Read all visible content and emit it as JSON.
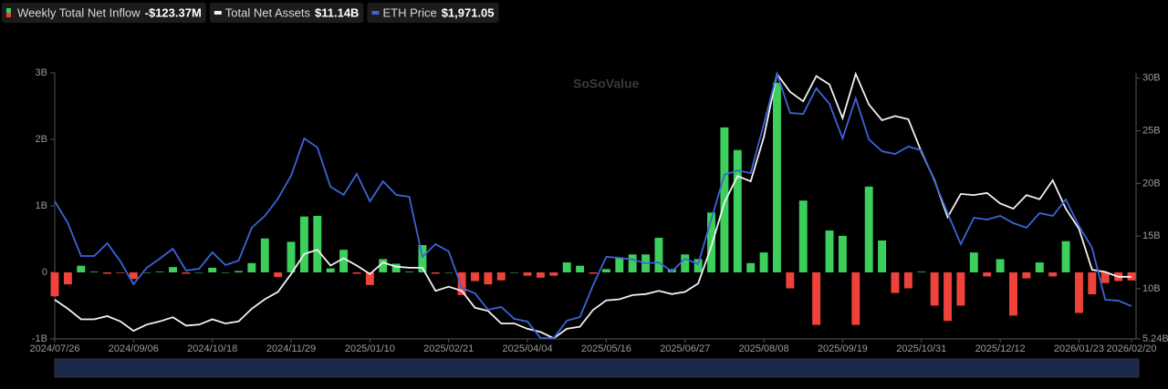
{
  "chart_data": {
    "type": "bar-line",
    "watermark": "SoSoValue",
    "categories": [
      "2024/07/26",
      null,
      null,
      null,
      null,
      null,
      "2024/09/06",
      null,
      null,
      null,
      null,
      null,
      "2024/10/18",
      null,
      null,
      null,
      null,
      null,
      "2024/11/29",
      null,
      null,
      null,
      null,
      null,
      "2025/01/10",
      null,
      null,
      null,
      null,
      null,
      "2025/02/21",
      null,
      null,
      null,
      null,
      null,
      "2025/04/04",
      null,
      null,
      null,
      null,
      null,
      "2025/05/16",
      null,
      null,
      null,
      null,
      null,
      "2025/06/27",
      null,
      null,
      null,
      null,
      null,
      "2025/08/08",
      null,
      null,
      null,
      null,
      null,
      "2025/09/19",
      null,
      null,
      null,
      null,
      null,
      "2025/10/31",
      null,
      null,
      null,
      null,
      null,
      "2025/12/12",
      null,
      null,
      null,
      null,
      null,
      "2026/01/23",
      null,
      null,
      null,
      "2026/02/20"
    ],
    "ylim": [
      -1,
      3
    ],
    "yticks": [
      {
        "value": -1,
        "label": "-1B"
      },
      0,
      {
        "value": 1,
        "label": "1B"
      },
      {
        "value": 2,
        "label": "2B"
      },
      {
        "value": 3,
        "label": "3B"
      }
    ],
    "y2lim": [
      5.24,
      30.5
    ],
    "y2ticks": [
      {
        "value": 5.24,
        "label": "5.24B"
      },
      {
        "value": 10,
        "label": "10B"
      },
      {
        "value": 15,
        "label": "15B"
      },
      {
        "value": 20,
        "label": "20B"
      },
      {
        "value": 25,
        "label": "25B"
      },
      {
        "value": 30,
        "label": "30B"
      }
    ],
    "y3lim": [
      1570,
      4810
    ],
    "series": [
      {
        "name": "Weekly Total Net Inflow",
        "latest": "-$123.37M",
        "type": "bar",
        "color": "#3ccf5c",
        "negative_color": "#f0423a",
        "legend_color": "#3ccf5c",
        "values": [
          -0.36,
          -0.18,
          0.1,
          0.01,
          -0.02,
          -0.01,
          -0.1,
          0,
          0.01,
          0.08,
          -0.02,
          0,
          0.07,
          0,
          0.02,
          0.14,
          0.51,
          -0.07,
          0.46,
          0.84,
          0.85,
          0.06,
          0.34,
          -0.02,
          -0.19,
          0.2,
          0.13,
          0.01,
          0.41,
          -0.02,
          0,
          -0.34,
          -0.13,
          -0.18,
          -0.12,
          0,
          -0.05,
          -0.08,
          -0.05,
          0.15,
          0.1,
          -0.02,
          0.05,
          0.22,
          0.27,
          0.27,
          0.52,
          0.05,
          0.27,
          0.2,
          0.9,
          2.18,
          1.84,
          0.14,
          0.3,
          2.85,
          -0.24,
          1.08,
          -0.79,
          0.63,
          0.55,
          -0.79,
          1.29,
          0.48,
          -0.31,
          -0.24,
          0.01,
          -0.5,
          -0.73,
          -0.5,
          0.3,
          -0.06,
          0.2,
          -0.65,
          -0.09,
          0.15,
          -0.06,
          0.47,
          -0.61,
          -0.33,
          -0.16,
          -0.13,
          -0.12
        ]
      },
      {
        "name": "Total Net Assets",
        "latest": "$11.14B",
        "type": "line",
        "axis": "y2",
        "color": "#f2f2f2",
        "values": [
          8.96,
          8.1,
          7.1,
          7.1,
          7.4,
          6.9,
          6.0,
          6.6,
          6.9,
          7.3,
          6.5,
          6.6,
          7.1,
          6.7,
          6.9,
          8.1,
          9.0,
          9.7,
          11.4,
          13.3,
          13.7,
          12.2,
          12.9,
          12.2,
          11.4,
          12.5,
          12.1,
          12.0,
          12.0,
          9.8,
          10.2,
          9.8,
          8.2,
          7.9,
          6.7,
          6.7,
          6.2,
          5.9,
          5.3,
          6.2,
          6.4,
          8.0,
          8.9,
          9.0,
          9.4,
          9.5,
          9.8,
          9.5,
          9.7,
          10.5,
          14.0,
          18.2,
          20.7,
          20.2,
          24.4,
          30.4,
          28.7,
          27.8,
          30.2,
          29.4,
          26.2,
          30.4,
          27.5,
          26.0,
          26.4,
          26.1,
          23.0,
          20.3,
          16.8,
          19.0,
          18.9,
          19.1,
          18.1,
          17.6,
          18.9,
          18.5,
          20.3,
          17.6,
          15.7,
          11.8,
          11.6,
          11.14,
          11.14
        ]
      },
      {
        "name": "ETH Price",
        "latest": "$1,971.05",
        "type": "line",
        "axis": "y3",
        "color": "#3d63d8",
        "values": [
          3246,
          2980,
          2580,
          2580,
          2735,
          2513,
          2236,
          2436,
          2547,
          2669,
          2402,
          2425,
          2624,
          2469,
          2524,
          2924,
          3068,
          3279,
          3557,
          4012,
          3901,
          3423,
          3324,
          3579,
          3246,
          3490,
          3324,
          3301,
          2569,
          2724,
          2635,
          2192,
          2125,
          1925,
          1958,
          1814,
          1781,
          1580,
          1580,
          1792,
          1836,
          2225,
          2569,
          2558,
          2536,
          2491,
          2502,
          2391,
          2547,
          2480,
          3024,
          3568,
          3623,
          3590,
          4189,
          4800,
          4322,
          4311,
          4622,
          4433,
          4012,
          4500,
          4000,
          3856,
          3823,
          3912,
          3867,
          3490,
          3102,
          2724,
          3046,
          3024,
          3068,
          2980,
          2924,
          3102,
          3068,
          3268,
          2946,
          2680,
          2047,
          2036,
          1971.05
        ]
      }
    ]
  }
}
